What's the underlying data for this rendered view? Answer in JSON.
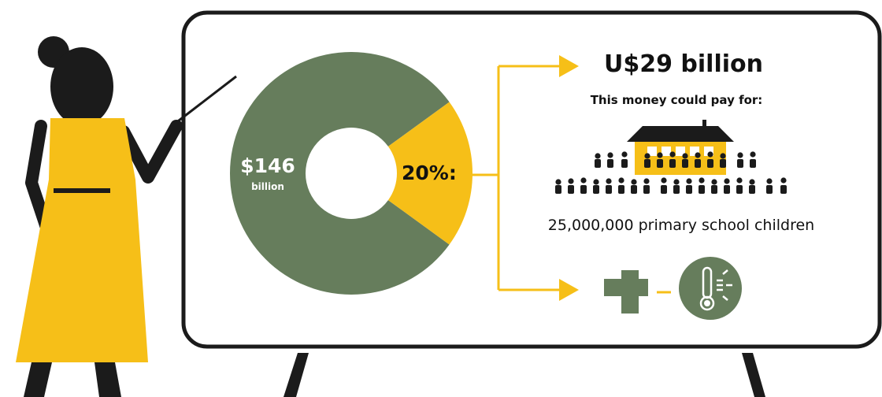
{
  "headline": "U$29 billion",
  "subhead": "This money could pay for:",
  "caption": "25,000,000 primary school children",
  "colors": {
    "green": "#667d5c",
    "yellow": "#f6bf18",
    "dark": "#1b1b1b",
    "white": "#ffffff"
  },
  "icons": [
    "school-building-icon",
    "children-crowd-icon",
    "health-cross-icon",
    "thermometer-icon",
    "presenter-figure",
    "arrow-icon"
  ],
  "chart_data": {
    "type": "pie",
    "variant": "donut",
    "slices": [
      {
        "value": 80,
        "color": "#667d5c"
      },
      {
        "value": 20,
        "color": "#f6bf18"
      }
    ],
    "center_label": {
      "amount": "$146",
      "unit": "billion"
    },
    "highlight_label": "20%:"
  }
}
